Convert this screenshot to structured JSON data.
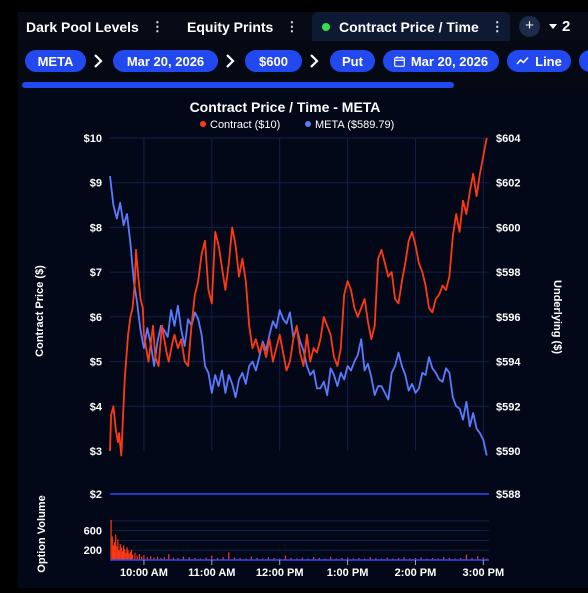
{
  "tabs": [
    {
      "label": "Dark Pool Levels",
      "active": false
    },
    {
      "label": "Equity Prints",
      "active": false
    },
    {
      "label": "Contract Price / Time",
      "active": true
    }
  ],
  "tab_menu_glyph": "⋮",
  "add_tab_label": "+",
  "tab_overflow_count": "2",
  "filters": {
    "ticker": "META",
    "date": "Mar 20, 2026",
    "strike": "$600",
    "type": "Put",
    "expiry": "Mar 20, 2026",
    "chart_style": "Line"
  },
  "colors": {
    "accent": "#2248f0",
    "contract_line": "#ff3a12",
    "underlying_line": "#5a7bff",
    "volume_bars": "#ff3a12",
    "active_dot": "#35e04b"
  },
  "chart_data": {
    "type": "line",
    "title": "Contract Price / Time - META",
    "legend_position": "top-center",
    "grid": true,
    "x_tick_labels": [
      "10:00 AM",
      "11:00 AM",
      "12:00 PM",
      "1:00 PM",
      "2:00 PM",
      "3:00 PM"
    ],
    "x_ticks_minutes": [
      600,
      660,
      720,
      780,
      840,
      900
    ],
    "x_range_minutes": [
      570,
      905
    ],
    "y_left": {
      "label": "Contract Price ($)",
      "range": [
        3,
        10
      ],
      "tick_labels": [
        "$3",
        "$4",
        "$5",
        "$6",
        "$7",
        "$8",
        "$9",
        "$10"
      ],
      "ticks": [
        3,
        4,
        5,
        6,
        7,
        8,
        9,
        10
      ]
    },
    "y_right": {
      "label": "Underlying ($)",
      "range": [
        590,
        604
      ],
      "tick_labels": [
        "$590",
        "$592",
        "$594",
        "$596",
        "$598",
        "$600",
        "$602",
        "$604"
      ],
      "ticks": [
        590,
        592,
        594,
        596,
        598,
        600,
        602,
        604
      ]
    },
    "series": [
      {
        "name": "Contract ($10)",
        "axis": "left",
        "x": [
          570,
          571,
          573,
          575,
          577,
          578,
          580,
          583,
          586,
          588,
          590,
          592,
          593,
          595,
          597,
          599,
          600,
          602,
          604,
          606,
          608,
          610,
          613,
          616,
          618,
          620,
          622,
          625,
          627,
          630,
          633,
          636,
          639,
          642,
          645,
          648,
          651,
          654,
          657,
          660,
          663,
          666,
          669,
          672,
          675,
          678,
          681,
          684,
          687,
          690,
          693,
          696,
          699,
          702,
          705,
          708,
          711,
          714,
          717,
          720,
          723,
          726,
          729,
          732,
          735,
          738,
          741,
          744,
          747,
          750,
          753,
          756,
          759,
          762,
          765,
          768,
          771,
          774,
          777,
          780,
          783,
          786,
          789,
          792,
          795,
          798,
          801,
          804,
          807,
          810,
          813,
          816,
          819,
          822,
          825,
          828,
          831,
          834,
          837,
          840,
          843,
          846,
          849,
          852,
          855,
          858,
          861,
          864,
          867,
          870,
          873,
          876,
          879,
          882,
          885,
          888,
          891,
          894,
          897,
          900,
          903
        ],
        "values": [
          3.0,
          3.8,
          4.0,
          3.5,
          3.2,
          3.4,
          2.9,
          4.6,
          5.6,
          6.0,
          6.2,
          6.8,
          7.5,
          6.9,
          6.4,
          6.2,
          5.6,
          5.3,
          5.0,
          5.4,
          5.8,
          5.1,
          4.9,
          5.8,
          5.5,
          5.2,
          5.0,
          5.4,
          5.6,
          5.3,
          5.5,
          5.0,
          4.9,
          5.8,
          6.5,
          6.8,
          7.4,
          7.7,
          6.6,
          6.3,
          7.9,
          7.6,
          7.1,
          6.6,
          7.2,
          8.0,
          7.6,
          6.9,
          7.3,
          6.8,
          5.8,
          5.3,
          5.5,
          5.2,
          5.4,
          5.1,
          5.5,
          5.0,
          5.3,
          5.6,
          5.2,
          4.8,
          5.0,
          5.5,
          5.8,
          5.2,
          4.9,
          5.6,
          5.0,
          5.3,
          5.2,
          5.5,
          6.0,
          5.8,
          5.6,
          5.1,
          4.9,
          5.3,
          6.5,
          6.8,
          6.6,
          6.2,
          6.0,
          6.2,
          6.4,
          5.9,
          5.5,
          5.8,
          7.3,
          7.5,
          7.2,
          6.9,
          7.0,
          6.4,
          6.3,
          6.8,
          7.2,
          7.7,
          7.9,
          7.6,
          7.2,
          7.0,
          6.7,
          6.2,
          6.1,
          6.4,
          6.5,
          6.7,
          6.6,
          6.9,
          7.8,
          8.3,
          7.9,
          8.6,
          8.3,
          8.8,
          9.2,
          8.7,
          9.2,
          9.6,
          10.0
        ]
      },
      {
        "name": "META ($589.79)",
        "axis": "right",
        "x": [
          570,
          573,
          576,
          579,
          582,
          585,
          588,
          591,
          594,
          597,
          600,
          603,
          606,
          609,
          612,
          615,
          618,
          621,
          624,
          627,
          630,
          633,
          636,
          639,
          642,
          645,
          648,
          651,
          654,
          657,
          660,
          663,
          666,
          669,
          672,
          675,
          678,
          681,
          684,
          687,
          690,
          693,
          696,
          699,
          702,
          705,
          708,
          711,
          714,
          717,
          720,
          723,
          726,
          729,
          732,
          735,
          738,
          741,
          744,
          747,
          750,
          753,
          756,
          759,
          762,
          765,
          768,
          771,
          774,
          777,
          780,
          783,
          786,
          789,
          792,
          795,
          798,
          801,
          804,
          807,
          810,
          813,
          816,
          819,
          822,
          825,
          828,
          831,
          834,
          837,
          840,
          843,
          846,
          849,
          852,
          855,
          858,
          861,
          864,
          867,
          870,
          873,
          876,
          879,
          882,
          885,
          888,
          891,
          894,
          897,
          900,
          903
        ],
        "values": [
          602.3,
          601.0,
          600.4,
          601.1,
          600.1,
          600.6,
          599.3,
          597.6,
          596.6,
          595.4,
          594.6,
          595.5,
          594.8,
          593.8,
          594.9,
          595.6,
          595.4,
          595.1,
          596.3,
          595.6,
          596.5,
          595.4,
          594.7,
          595.9,
          595.6,
          596.2,
          595.9,
          595.2,
          593.8,
          593.5,
          592.6,
          593.4,
          592.9,
          593.6,
          592.6,
          593.4,
          593.0,
          592.4,
          593.2,
          593.5,
          593.0,
          593.8,
          594.0,
          593.6,
          594.2,
          594.9,
          594.5,
          595.2,
          595.8,
          595.5,
          596.3,
          595.9,
          595.7,
          596.2,
          595.1,
          595.5,
          594.9,
          594.5,
          593.8,
          593.4,
          593.6,
          592.8,
          592.8,
          593.1,
          592.5,
          593.7,
          593.4,
          592.9,
          593.5,
          593.2,
          593.8,
          593.6,
          594.0,
          594.3,
          595.0,
          593.6,
          593.9,
          593.3,
          592.5,
          592.9,
          592.9,
          592.6,
          592.3,
          593.5,
          593.8,
          594.4,
          593.8,
          593.4,
          592.7,
          593.0,
          592.6,
          592.8,
          593.5,
          593.4,
          594.2,
          593.7,
          593.5,
          593.2,
          593.1,
          593.7,
          593.5,
          592.4,
          592.0,
          591.9,
          591.4,
          592.2,
          591.1,
          591.7,
          591.0,
          590.8,
          590.5,
          589.8
        ]
      }
    ],
    "volume_panel": {
      "label": "Option Volume",
      "tick_labels": [
        "200",
        "600"
      ],
      "ticks": [
        200,
        600
      ],
      "range": [
        0,
        900
      ],
      "flat_line_left": "$2",
      "flat_line_right": "$588",
      "type": "bar",
      "x": [
        571,
        572,
        573,
        574,
        575,
        576,
        577,
        578,
        579,
        580,
        581,
        582,
        583,
        584,
        585,
        586,
        587,
        588,
        589,
        590,
        592,
        594,
        596,
        598,
        600,
        603,
        606,
        609,
        612,
        615,
        618,
        622,
        626,
        630,
        635,
        640,
        645,
        650,
        655,
        660,
        665,
        670,
        675,
        680,
        685,
        690,
        695,
        700,
        705,
        710,
        715,
        720,
        725,
        730,
        735,
        740,
        745,
        750,
        755,
        760,
        765,
        770,
        775,
        780,
        785,
        790,
        795,
        800,
        805,
        810,
        815,
        820,
        825,
        830,
        835,
        840,
        845,
        850,
        855,
        860,
        865,
        870,
        875,
        880,
        885,
        890,
        895,
        900,
        903
      ],
      "values": [
        820,
        480,
        300,
        360,
        520,
        280,
        420,
        200,
        330,
        260,
        180,
        300,
        220,
        150,
        260,
        200,
        130,
        170,
        210,
        110,
        150,
        90,
        120,
        70,
        100,
        60,
        80,
        50,
        70,
        40,
        60,
        120,
        50,
        40,
        70,
        60,
        40,
        30,
        50,
        90,
        40,
        60,
        160,
        50,
        40,
        30,
        70,
        40,
        30,
        60,
        40,
        30,
        90,
        40,
        30,
        50,
        30,
        60,
        40,
        30,
        70,
        30,
        40,
        50,
        30,
        40,
        30,
        60,
        40,
        30,
        50,
        30,
        40,
        60,
        30,
        40,
        50,
        30,
        40,
        30,
        60,
        40,
        30,
        40,
        110,
        40,
        80,
        50,
        30
      ]
    }
  }
}
